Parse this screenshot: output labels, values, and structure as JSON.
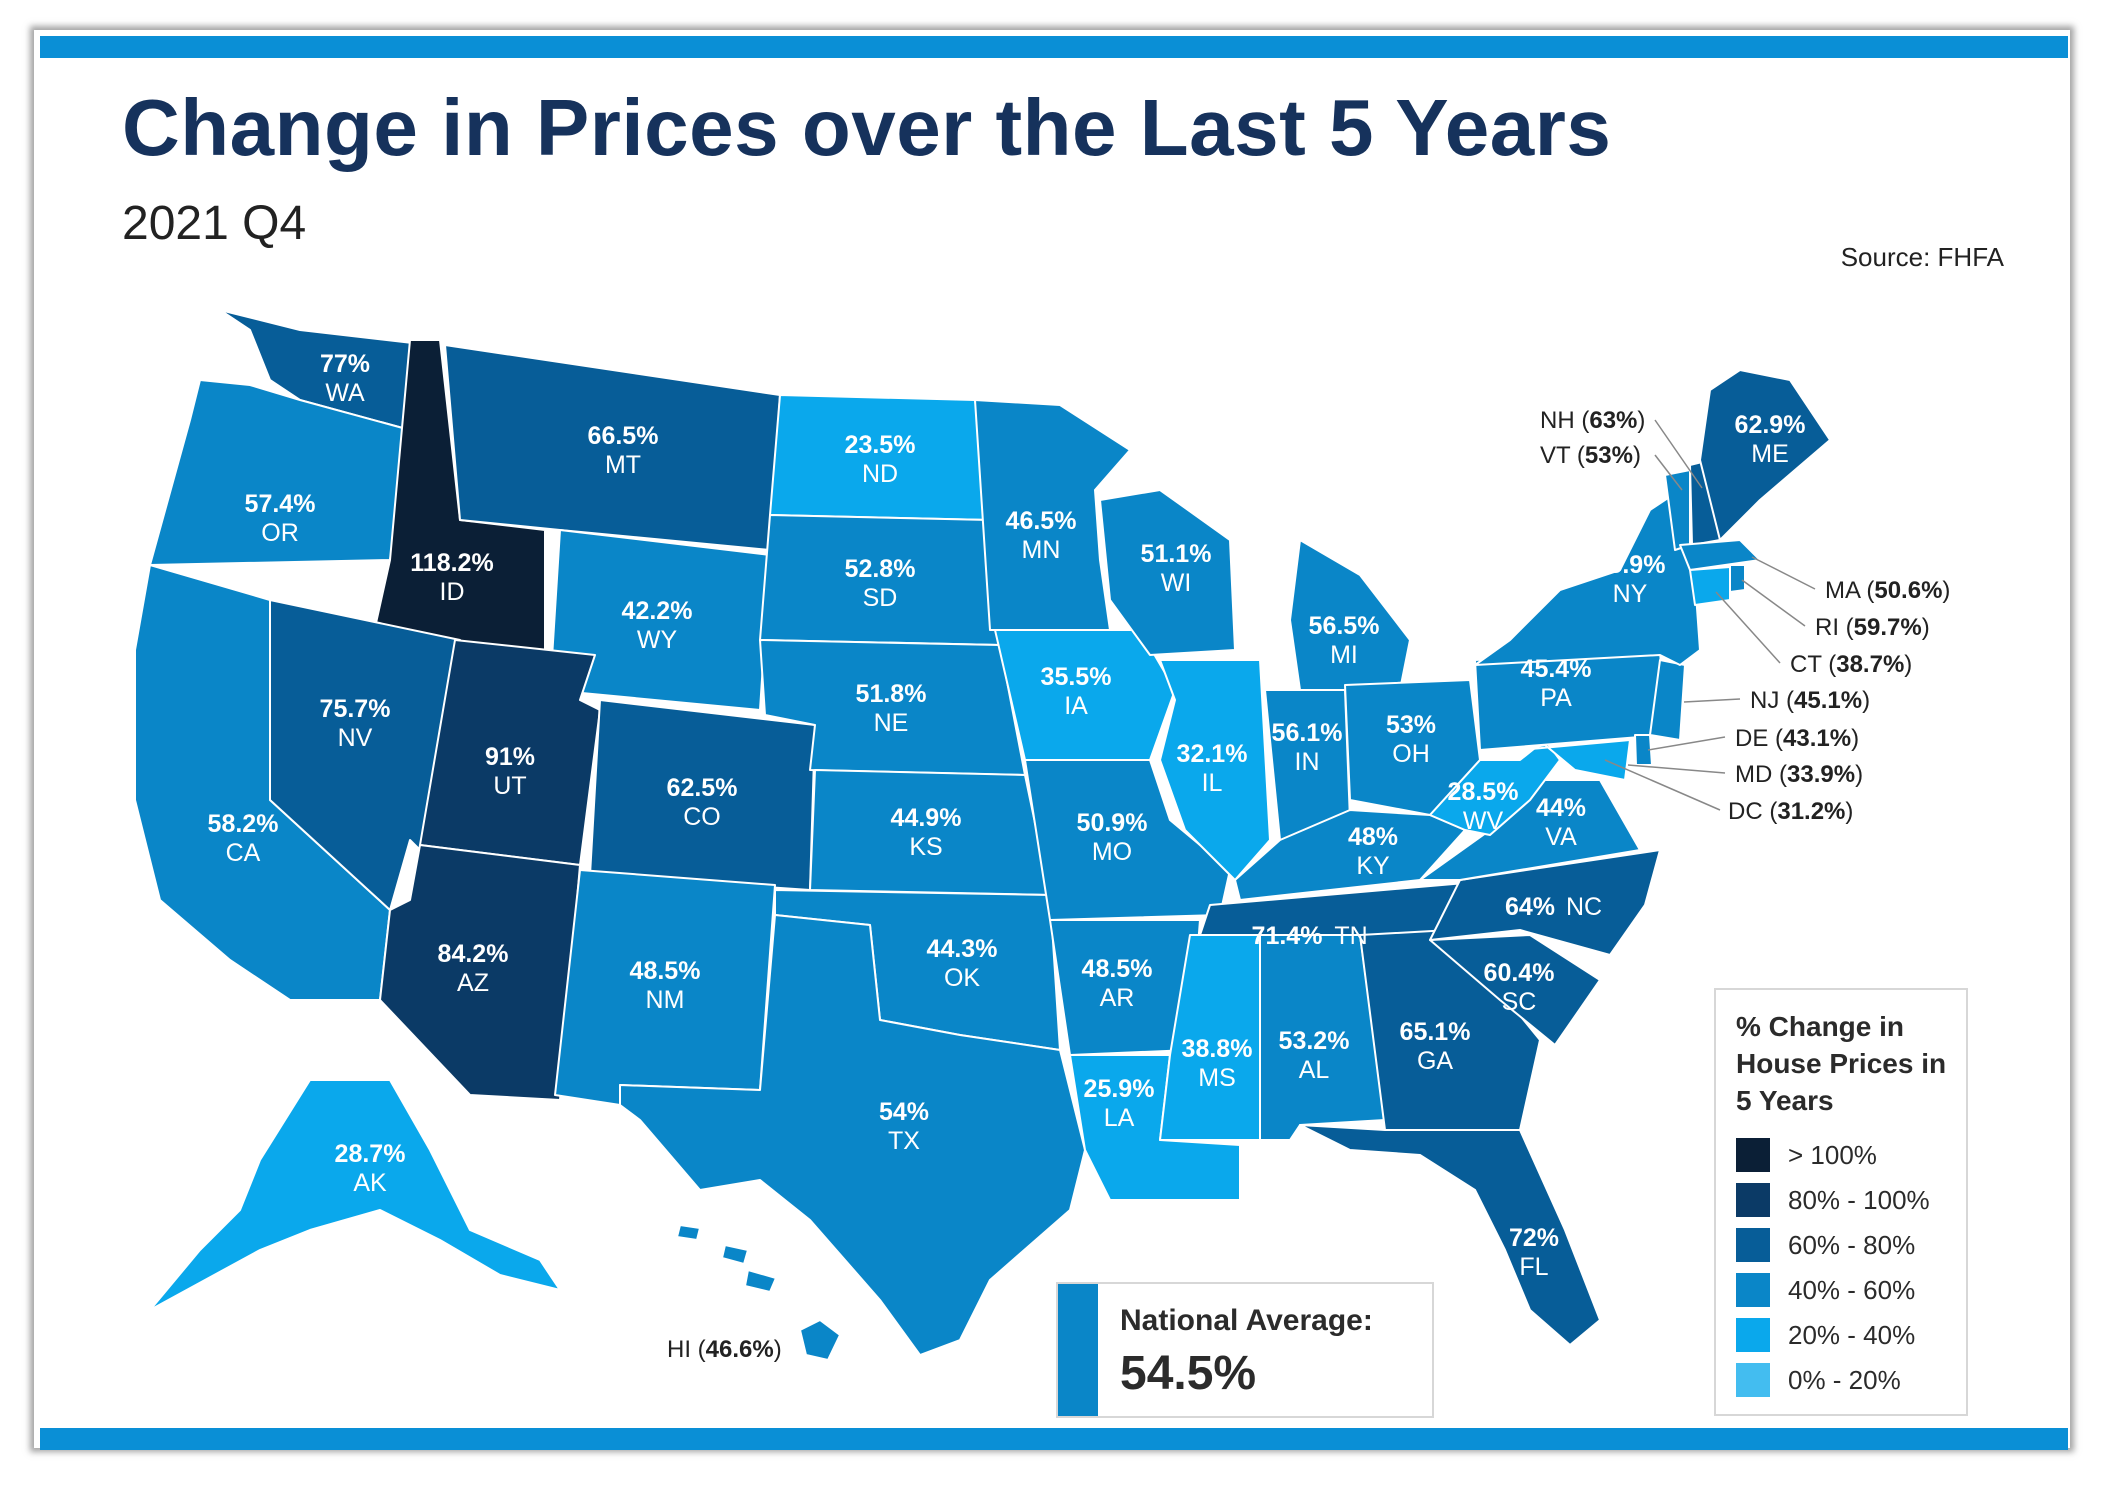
{
  "title": "Change in Prices over the Last 5 Years",
  "subtitle": "2021 Q4",
  "source": "Source: FHFA",
  "national_average": {
    "label": "National Average:",
    "value": "54.5%"
  },
  "legend": {
    "title": "% Change in House Prices in 5 Years",
    "items": [
      {
        "label": "> 100%",
        "color": "#0b1f36"
      },
      {
        "label": "80% - 100%",
        "color": "#0b3a66"
      },
      {
        "label": "60% - 80%",
        "color": "#075d98"
      },
      {
        "label": "40% - 60%",
        "color": "#0a86c8"
      },
      {
        "label": "20% - 40%",
        "color": "#0aa8ec"
      },
      {
        "label": "0% - 20%",
        "color": "#43bdf0"
      }
    ]
  },
  "states": [
    {
      "abbr": "WA",
      "value": "77%"
    },
    {
      "abbr": "OR",
      "value": "57.4%"
    },
    {
      "abbr": "CA",
      "value": "58.2%"
    },
    {
      "abbr": "ID",
      "value": "118.2%"
    },
    {
      "abbr": "NV",
      "value": "75.7%"
    },
    {
      "abbr": "MT",
      "value": "66.5%"
    },
    {
      "abbr": "WY",
      "value": "42.2%"
    },
    {
      "abbr": "UT",
      "value": "91%"
    },
    {
      "abbr": "AZ",
      "value": "84.2%"
    },
    {
      "abbr": "CO",
      "value": "62.5%"
    },
    {
      "abbr": "NM",
      "value": "48.5%"
    },
    {
      "abbr": "ND",
      "value": "23.5%"
    },
    {
      "abbr": "SD",
      "value": "52.8%"
    },
    {
      "abbr": "NE",
      "value": "51.8%"
    },
    {
      "abbr": "KS",
      "value": "44.9%"
    },
    {
      "abbr": "OK",
      "value": "44.3%"
    },
    {
      "abbr": "TX",
      "value": "54%"
    },
    {
      "abbr": "MN",
      "value": "46.5%"
    },
    {
      "abbr": "IA",
      "value": "35.5%"
    },
    {
      "abbr": "MO",
      "value": "50.9%"
    },
    {
      "abbr": "AR",
      "value": "48.5%"
    },
    {
      "abbr": "LA",
      "value": "25.9%"
    },
    {
      "abbr": "WI",
      "value": "51.1%"
    },
    {
      "abbr": "IL",
      "value": "32.1%"
    },
    {
      "abbr": "MS",
      "value": "38.8%"
    },
    {
      "abbr": "MI",
      "value": "56.5%"
    },
    {
      "abbr": "IN",
      "value": "56.1%"
    },
    {
      "abbr": "OH",
      "value": "53%"
    },
    {
      "abbr": "KY",
      "value": "48%"
    },
    {
      "abbr": "TN",
      "value": "71.4%"
    },
    {
      "abbr": "AL",
      "value": "53.2%"
    },
    {
      "abbr": "GA",
      "value": "65.1%"
    },
    {
      "abbr": "FL",
      "value": "72%"
    },
    {
      "abbr": "SC",
      "value": "60.4%"
    },
    {
      "abbr": "NC",
      "value": "64%"
    },
    {
      "abbr": "VA",
      "value": "44%"
    },
    {
      "abbr": "WV",
      "value": "28.5%"
    },
    {
      "abbr": "PA",
      "value": "45.4%"
    },
    {
      "abbr": "NY",
      "value": "45.9%"
    },
    {
      "abbr": "ME",
      "value": "62.9%"
    },
    {
      "abbr": "AK",
      "value": "28.7%"
    },
    {
      "abbr": "HI",
      "value": "46.6%"
    },
    {
      "abbr": "NH",
      "value": "63%"
    },
    {
      "abbr": "VT",
      "value": "53%"
    },
    {
      "abbr": "MA",
      "value": "50.6%"
    },
    {
      "abbr": "RI",
      "value": "59.7%"
    },
    {
      "abbr": "CT",
      "value": "38.7%"
    },
    {
      "abbr": "NJ",
      "value": "45.1%"
    },
    {
      "abbr": "DE",
      "value": "43.1%"
    },
    {
      "abbr": "MD",
      "value": "33.9%"
    },
    {
      "abbr": "DC",
      "value": "31.2%"
    }
  ]
}
